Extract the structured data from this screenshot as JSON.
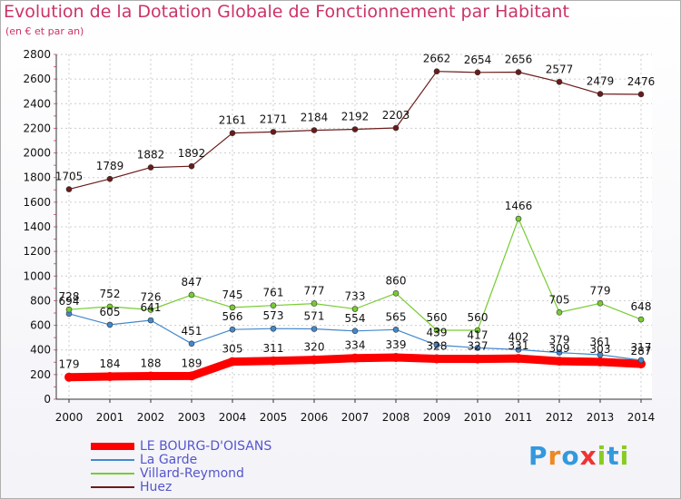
{
  "chart_data": {
    "type": "line",
    "title": "Evolution de la Dotation Globale de Fonctionnement par Habitant",
    "subtitle": "(en € et par an)",
    "x": [
      "2000",
      "2001",
      "2002",
      "2003",
      "2004",
      "2005",
      "2006",
      "2007",
      "2008",
      "2009",
      "2010",
      "2011",
      "2012",
      "2013",
      "2014"
    ],
    "ylim": [
      0,
      2800
    ],
    "yticks": [
      0,
      200,
      400,
      600,
      800,
      1000,
      1200,
      1400,
      1600,
      1800,
      2000,
      2200,
      2400,
      2600,
      2800
    ],
    "grid": true,
    "legend": "bottom-left",
    "series": [
      {
        "name": "LE BOURG-D'OISANS",
        "color": "#ff0000",
        "values": [
          179,
          184,
          188,
          189,
          305,
          311,
          320,
          334,
          339,
          328,
          327,
          331,
          309,
          303,
          287
        ]
      },
      {
        "name": "La Garde",
        "color": "#4488cc",
        "values": [
          694,
          605,
          641,
          451,
          566,
          573,
          571,
          554,
          565,
          439,
          417,
          402,
          379,
          361,
          317
        ]
      },
      {
        "name": "Villard-Reymond",
        "color": "#77cc33",
        "values": [
          728,
          752,
          726,
          847,
          745,
          761,
          777,
          733,
          860,
          560,
          560,
          1466,
          705,
          779,
          648
        ]
      },
      {
        "name": "Huez",
        "color": "#6b1a1a",
        "values": [
          1705,
          1789,
          1882,
          1892,
          2161,
          2171,
          2184,
          2192,
          2203,
          2662,
          2654,
          2656,
          2577,
          2479,
          2476
        ]
      }
    ]
  },
  "logo": {
    "text": "Proxiti"
  }
}
